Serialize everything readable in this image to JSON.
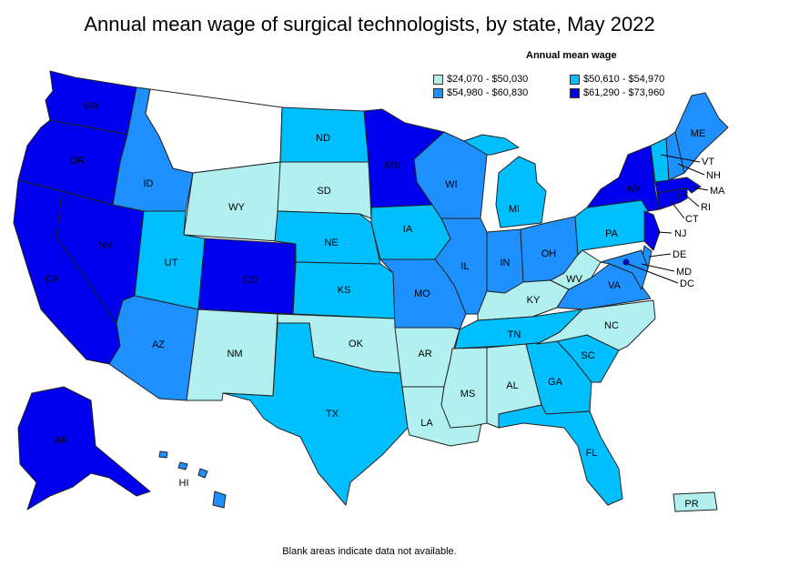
{
  "title": "Annual mean wage of surgical technologists, by state, May 2022",
  "legend": {
    "title": "Annual mean wage",
    "bins": [
      {
        "label": "$24,070 - $50,030",
        "color": "#b2f0f0"
      },
      {
        "label": "$50,610 - $54,970",
        "color": "#00bfff"
      },
      {
        "label": "$54,980 - $60,830",
        "color": "#1e90ff"
      },
      {
        "label": "$61,290 - $73,960",
        "color": "#0000ee"
      }
    ]
  },
  "footnote": "Blank areas indicate data not available.",
  "states": {
    "WA": "$61,290 - $73,960",
    "OR": "$61,290 - $73,960",
    "CA": "$61,290 - $73,960",
    "NV": "$61,290 - $73,960",
    "ID": "$54,980 - $60,830",
    "MT": "",
    "WY": "$24,070 - $50,030",
    "UT": "$50,610 - $54,970",
    "AZ": "$54,980 - $60,830",
    "CO": "$61,290 - $73,960",
    "NM": "$24,070 - $50,030",
    "ND": "$50,610 - $54,970",
    "SD": "$24,070 - $50,030",
    "NE": "$50,610 - $54,970",
    "KS": "$50,610 - $54,970",
    "OK": "$24,070 - $50,030",
    "TX": "$50,610 - $54,970",
    "MN": "$61,290 - $73,960",
    "IA": "$50,610 - $54,970",
    "MO": "$54,980 - $60,830",
    "AR": "$24,070 - $50,030",
    "LA": "$24,070 - $50,030",
    "WI": "$54,980 - $60,830",
    "IL": "$54,980 - $60,830",
    "MI": "$50,610 - $54,970",
    "IN": "$54,980 - $60,830",
    "OH": "$54,980 - $60,830",
    "KY": "$24,070 - $50,030",
    "TN": "$50,610 - $54,970",
    "MS": "$24,070 - $50,030",
    "AL": "$24,070 - $50,030",
    "GA": "$50,610 - $54,970",
    "FL": "$50,610 - $54,970",
    "SC": "$50,610 - $54,970",
    "NC": "$24,070 - $50,030",
    "VA": "$54,980 - $60,830",
    "WV": "$24,070 - $50,030",
    "PA": "$50,610 - $54,970",
    "NY": "$61,290 - $73,960",
    "NJ": "$61,290 - $73,960",
    "DE": "$54,980 - $60,830",
    "MD": "$54,980 - $60,830",
    "DC": "$61,290 - $73,960",
    "CT": "$61,290 - $73,960",
    "RI": "$61,290 - $73,960",
    "MA": "$61,290 - $73,960",
    "VT": "$50,610 - $54,970",
    "NH": "$54,980 - $60,830",
    "ME": "$54,980 - $60,830",
    "AK": "$61,290 - $73,960",
    "HI": "$54,980 - $60,830",
    "PR": "$24,070 - $50,030"
  },
  "labels": {
    "WA": "WA",
    "OR": "OR",
    "CA": "CA",
    "NV": "NV",
    "ID": "ID",
    "WY": "WY",
    "UT": "UT",
    "AZ": "AZ",
    "CO": "CO",
    "NM": "NM",
    "ND": "ND",
    "SD": "SD",
    "NE": "NE",
    "KS": "KS",
    "OK": "OK",
    "TX": "TX",
    "MN": "MN",
    "IA": "IA",
    "MO": "MO",
    "AR": "AR",
    "LA": "LA",
    "WI": "WI",
    "IL": "IL",
    "MI": "MI",
    "IN": "IN",
    "OH": "OH",
    "KY": "KY",
    "TN": "TN",
    "MS": "MS",
    "AL": "AL",
    "GA": "GA",
    "FL": "FL",
    "SC": "SC",
    "NC": "NC",
    "VA": "VA",
    "WV": "WV",
    "PA": "PA",
    "NY": "NY",
    "NJ": "NJ",
    "DE": "DE",
    "MD": "MD",
    "DC": "DC",
    "CT": "CT",
    "RI": "RI",
    "MA": "MA",
    "VT": "VT",
    "NH": "NH",
    "ME": "ME",
    "AK": "AK",
    "HI": "HI",
    "PR": "PR"
  }
}
